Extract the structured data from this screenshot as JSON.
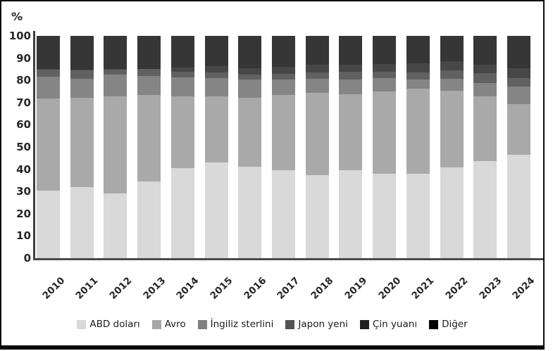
{
  "chart_data": {
    "type": "bar",
    "stacked": true,
    "title": "",
    "unit_label": "%",
    "xlabel": "",
    "ylabel": "%",
    "ylim": [
      0,
      100
    ],
    "y_ticks": [
      0,
      10,
      20,
      30,
      40,
      50,
      60,
      70,
      80,
      90,
      100
    ],
    "grid": false,
    "legend_position": "bottom",
    "categories": [
      "2010",
      "2011",
      "2012",
      "2013",
      "2014",
      "2015",
      "2016",
      "2017",
      "2018",
      "2019",
      "2020",
      "2021",
      "2022",
      "2023",
      "2024"
    ],
    "series": [
      {
        "name": "ABD doları",
        "color": "#d9d9d9",
        "legend_color": "#d9d9d9",
        "values": [
          30.5,
          32.0,
          29.0,
          34.6,
          40.5,
          43.1,
          41.0,
          39.5,
          37.3,
          39.6,
          38.1,
          38.1,
          40.8,
          43.7,
          46.4
        ]
      },
      {
        "name": "Avro",
        "color": "#a9a9a9",
        "legend_color": "#a6a6a6",
        "values": [
          41.5,
          40.2,
          43.7,
          38.7,
          32.4,
          29.6,
          31.2,
          33.8,
          37.0,
          34.2,
          36.8,
          38.2,
          34.6,
          29.0,
          22.8
        ]
      },
      {
        "name": "İngiliz sterlini",
        "color": "#858585",
        "legend_color": "#7f7f7f",
        "values": [
          9.5,
          8.5,
          9.9,
          8.7,
          8.3,
          8.2,
          8.3,
          7.2,
          6.4,
          6.7,
          6.0,
          4.2,
          5.3,
          6.1,
          8.0
        ]
      },
      {
        "name": "Japon yeni",
        "color": "#616161",
        "legend_color": "#535353",
        "values": [
          3.3,
          3.8,
          2.2,
          3.0,
          2.7,
          2.8,
          2.1,
          2.4,
          3.0,
          3.4,
          3.0,
          3.0,
          3.7,
          4.3,
          3.7
        ]
      },
      {
        "name": "Çin yuanı",
        "color": "#474747",
        "legend_color": "#1f1f1f",
        "values": [
          0.2,
          0.3,
          0.2,
          0.3,
          2.0,
          2.7,
          2.9,
          3.2,
          3.2,
          3.2,
          3.4,
          4.3,
          4.3,
          3.8,
          4.6
        ]
      },
      {
        "name": "Diğer",
        "color": "#363636",
        "legend_color": "#050505",
        "values": [
          15.0,
          15.2,
          15.0,
          14.7,
          14.1,
          13.6,
          14.5,
          13.9,
          13.1,
          12.9,
          12.7,
          12.2,
          11.3,
          13.1,
          14.5
        ]
      }
    ]
  }
}
